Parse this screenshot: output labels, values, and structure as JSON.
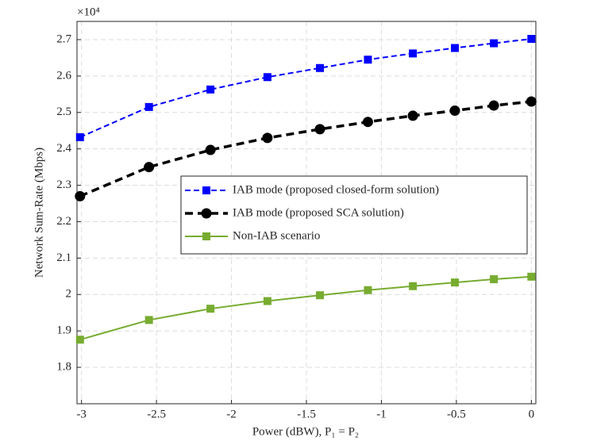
{
  "chart_data": {
    "type": "line",
    "xlabel": "Power (dBW),  P₁ = P₂",
    "ylabel": "Network Sum-Rate (Mbps)",
    "y_multiplier": "×10⁴",
    "x": [
      -3.01,
      -2.55,
      -2.14,
      -1.76,
      -1.41,
      -1.09,
      -0.79,
      -0.51,
      -0.25,
      0
    ],
    "series": [
      {
        "name": "IAB mode (proposed closed-form solution)",
        "color": "#0000ff",
        "dash": "dashed",
        "marker": "square",
        "values": [
          2.432,
          2.515,
          2.563,
          2.597,
          2.622,
          2.645,
          2.662,
          2.677,
          2.69,
          2.702
        ]
      },
      {
        "name": "IAB mode (proposed SCA solution)",
        "color": "#000000",
        "dash": "dashed",
        "marker": "circle",
        "values": [
          2.27,
          2.35,
          2.397,
          2.43,
          2.454,
          2.474,
          2.491,
          2.505,
          2.519,
          2.53
        ]
      },
      {
        "name": "Non-IAB scenario",
        "color": "#77ac30",
        "dash": "solid",
        "marker": "square",
        "values": [
          1.876,
          1.93,
          1.961,
          1.982,
          1.998,
          2.012,
          2.023,
          2.033,
          2.042,
          2.049
        ]
      }
    ],
    "xlim": [
      -3.03,
      0.03
    ],
    "xticks": [
      -3,
      -2.5,
      -2,
      -1.5,
      -1,
      -0.5,
      0
    ],
    "ylim": [
      1.7,
      2.75
    ],
    "yticks": [
      1.8,
      1.9,
      2,
      2.1,
      2.2,
      2.3,
      2.4,
      2.5,
      2.6,
      2.7
    ],
    "grid": true
  }
}
